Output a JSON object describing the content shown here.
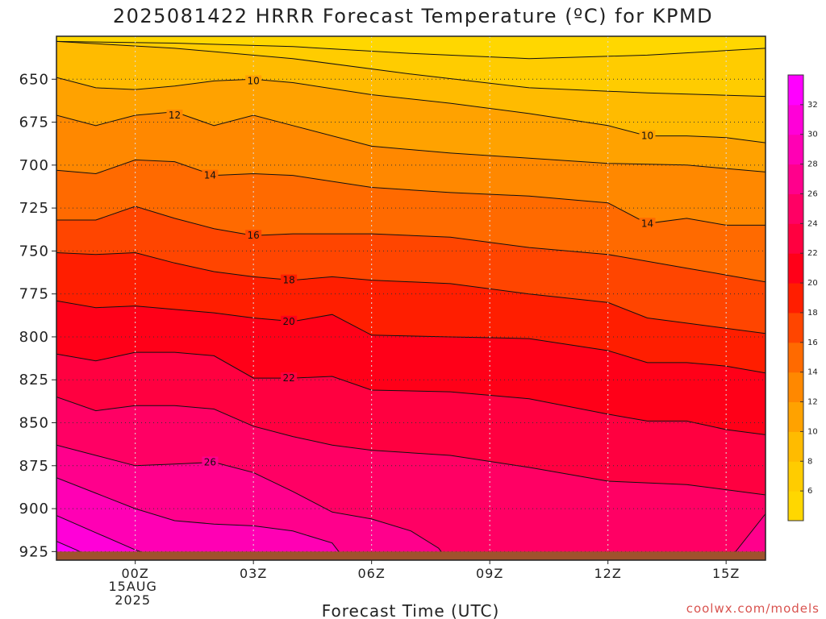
{
  "chart_data": {
    "type": "heatmap",
    "title": "2025081422 HRRR Forecast Temperature (ºC) for KPMD",
    "xlabel": "Forecast Time (UTC)",
    "ylabel": "",
    "credit": "coolwx.com/models",
    "x_range_hours": [
      -2,
      16
    ],
    "y_range_hpa": [
      625,
      930
    ],
    "ground_level_hpa": 925,
    "y_ticks": [
      650,
      675,
      700,
      725,
      750,
      775,
      800,
      825,
      850,
      875,
      900,
      925
    ],
    "x_ticks": [
      {
        "hour": 0,
        "label": "00Z",
        "sub1": "15AUG",
        "sub2": "2025"
      },
      {
        "hour": 3,
        "label": "03Z",
        "sub1": "",
        "sub2": ""
      },
      {
        "hour": 6,
        "label": "06Z",
        "sub1": "",
        "sub2": ""
      },
      {
        "hour": 9,
        "label": "09Z",
        "sub1": "",
        "sub2": ""
      },
      {
        "hour": 12,
        "label": "12Z",
        "sub1": "",
        "sub2": ""
      },
      {
        "hour": 15,
        "label": "15Z",
        "sub1": "",
        "sub2": ""
      }
    ],
    "grid": true,
    "colorbar": {
      "placement": "right",
      "ticks": [
        6,
        8,
        10,
        12,
        14,
        16,
        18,
        20,
        22,
        24,
        26,
        28,
        30,
        32
      ],
      "levels": [
        {
          "from": 4,
          "to": 6,
          "color": "#ffd700"
        },
        {
          "from": 6,
          "to": 8,
          "color": "#ffcc00"
        },
        {
          "from": 8,
          "to": 10,
          "color": "#ffbb00"
        },
        {
          "from": 10,
          "to": 12,
          "color": "#ffa200"
        },
        {
          "from": 12,
          "to": 14,
          "color": "#ff8800"
        },
        {
          "from": 14,
          "to": 16,
          "color": "#ff6a00"
        },
        {
          "from": 16,
          "to": 18,
          "color": "#ff4500"
        },
        {
          "from": 18,
          "to": 20,
          "color": "#ff1e00"
        },
        {
          "from": 20,
          "to": 22,
          "color": "#ff0018"
        },
        {
          "from": 22,
          "to": 24,
          "color": "#ff0040"
        },
        {
          "from": 24,
          "to": 26,
          "color": "#ff0064"
        },
        {
          "from": 26,
          "to": 28,
          "color": "#ff008c"
        },
        {
          "from": 28,
          "to": 30,
          "color": "#ff00b4"
        },
        {
          "from": 30,
          "to": 32,
          "color": "#ff00d8"
        },
        {
          "from": 32,
          "to": 34,
          "color": "#ff00ff"
        }
      ]
    },
    "contour_labels": [
      {
        "text": "10",
        "hour": 3.0,
        "hpa": 651
      },
      {
        "text": "10",
        "hour": 13.0,
        "hpa": 683
      },
      {
        "text": "12",
        "hour": 1.0,
        "hpa": 671
      },
      {
        "text": "14",
        "hour": 1.9,
        "hpa": 706
      },
      {
        "text": "14",
        "hour": 13.0,
        "hpa": 734
      },
      {
        "text": "16",
        "hour": 3.0,
        "hpa": 741
      },
      {
        "text": "18",
        "hour": 3.9,
        "hpa": 767
      },
      {
        "text": "20",
        "hour": 3.9,
        "hpa": 791
      },
      {
        "text": "22",
        "hour": 3.9,
        "hpa": 824
      },
      {
        "text": "26",
        "hour": 1.9,
        "hpa": 873
      }
    ],
    "series": [
      {
        "value": 6,
        "hours": [
          -2,
          1,
          4,
          7,
          10,
          13,
          16
        ],
        "hpa": [
          628,
          629,
          631,
          635,
          638,
          636,
          632
        ]
      },
      {
        "value": 8,
        "hours": [
          -2,
          1,
          4,
          7,
          10,
          13,
          16
        ],
        "hpa": [
          628,
          632,
          638,
          647,
          655,
          658,
          660
        ]
      },
      {
        "value": 10,
        "hours": [
          -2,
          -1,
          0,
          1,
          2,
          3,
          4,
          6,
          8,
          10,
          12,
          13,
          14,
          15,
          16
        ],
        "hpa": [
          649,
          655,
          656,
          654,
          651,
          650,
          652,
          659,
          664,
          670,
          677,
          683,
          683,
          684,
          687
        ]
      },
      {
        "value": 12,
        "hours": [
          -2,
          -1,
          0,
          1,
          2,
          3,
          4,
          6,
          8,
          10,
          12,
          14,
          16
        ],
        "hpa": [
          671,
          677,
          671,
          669,
          677,
          671,
          677,
          689,
          693,
          696,
          699,
          700,
          704
        ]
      },
      {
        "value": 14,
        "hours": [
          -2,
          -1,
          0,
          1,
          2,
          3,
          4,
          6,
          8,
          10,
          12,
          13,
          14,
          15,
          16
        ],
        "hpa": [
          703,
          705,
          697,
          698,
          706,
          705,
          706,
          713,
          716,
          718,
          722,
          734,
          731,
          735,
          735
        ]
      },
      {
        "value": 16,
        "hours": [
          -2,
          -1,
          0,
          1,
          2,
          3,
          4,
          6,
          8,
          10,
          12,
          14,
          15,
          16
        ],
        "hpa": [
          732,
          732,
          724,
          731,
          737,
          741,
          740,
          740,
          742,
          748,
          752,
          760,
          764,
          768
        ]
      },
      {
        "value": 18,
        "hours": [
          -2,
          -1,
          0,
          1,
          2,
          3,
          4,
          5,
          6,
          8,
          10,
          12,
          13,
          14,
          16
        ],
        "hpa": [
          751,
          752,
          751,
          757,
          762,
          765,
          767,
          765,
          767,
          769,
          775,
          780,
          789,
          792,
          798
        ]
      },
      {
        "value": 20,
        "hours": [
          -2,
          -1,
          0,
          1,
          2,
          3,
          4,
          5,
          6,
          8,
          10,
          12,
          13,
          14,
          15,
          16
        ],
        "hpa": [
          779,
          783,
          782,
          784,
          786,
          789,
          791,
          787,
          799,
          800,
          801,
          808,
          815,
          815,
          817,
          821
        ]
      },
      {
        "value": 22,
        "hours": [
          -2,
          -1,
          0,
          1,
          2,
          3,
          4,
          5,
          6,
          8,
          10,
          12,
          13,
          14,
          15,
          16
        ],
        "hpa": [
          810,
          814,
          809,
          809,
          811,
          824,
          824,
          823,
          831,
          832,
          836,
          845,
          849,
          849,
          854,
          857
        ]
      },
      {
        "value": 24,
        "hours": [
          -2,
          -1,
          0,
          1,
          2,
          3,
          4,
          5,
          6,
          8,
          10,
          12,
          14,
          16
        ],
        "hpa": [
          835,
          843,
          840,
          840,
          842,
          852,
          858,
          863,
          866,
          869,
          876,
          884,
          886,
          892
        ]
      },
      {
        "value": 26,
        "hours": [
          -2,
          -1,
          0,
          1,
          2,
          3,
          4,
          5,
          6,
          7,
          7.7,
          8,
          9,
          10,
          11,
          12,
          14,
          16
        ],
        "hpa": [
          863,
          869,
          875,
          874,
          873,
          879,
          890,
          902,
          906,
          913,
          923,
          932,
          932,
          932,
          932,
          932,
          932,
          932
        ]
      },
      {
        "value": 26,
        "hours": [
          -2,
          0,
          2,
          4,
          6,
          8,
          9,
          10,
          11,
          12,
          13,
          14,
          15,
          16
        ],
        "hpa": [
          932,
          932,
          932,
          932,
          932,
          932,
          932,
          932,
          932,
          932,
          932,
          932,
          932,
          903
        ]
      },
      {
        "value": 28,
        "hours": [
          -2,
          -1,
          0,
          1,
          2,
          3,
          4,
          5,
          5.4,
          6,
          7,
          8,
          9,
          9.6
        ],
        "hpa": [
          882,
          891,
          900,
          907,
          909,
          910,
          913,
          920,
          932,
          932,
          932,
          932,
          932,
          932
        ]
      },
      {
        "value": 28,
        "hours": [
          0,
          3,
          6,
          7,
          8,
          9,
          9.6,
          10,
          11,
          12,
          13,
          14,
          15,
          16
        ],
        "hpa": [
          932,
          932,
          932,
          932,
          932,
          932,
          932,
          932,
          932,
          932,
          932,
          932,
          932,
          932
        ]
      },
      {
        "value": 30,
        "hours": [
          -2,
          -1,
          0,
          1,
          1.5
        ],
        "hpa": [
          904,
          914,
          924,
          932,
          932
        ]
      },
      {
        "value": 32,
        "hours": [
          -2,
          -1.5,
          -0.8,
          -0.4
        ],
        "hpa": [
          919,
          924,
          932,
          932
        ]
      }
    ]
  }
}
